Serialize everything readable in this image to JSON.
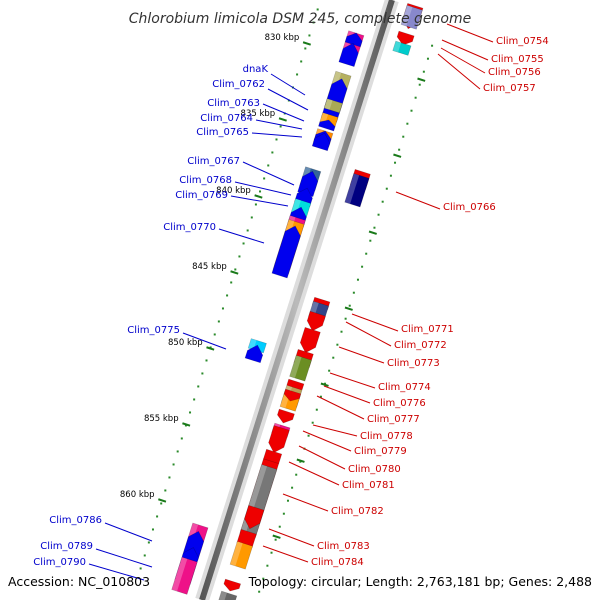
{
  "title": "Chlorobium limicola DSM 245, complete genome",
  "footer": {
    "accession": "Accession: NC_010803",
    "stats": "Topology: circular; Length: 2,763,181 bp; Genes: 2,488"
  },
  "colors": {
    "forward_label": "#0000cc",
    "reverse_label": "#cc0000",
    "forward_gene": "#0000ee",
    "reverse_gene": "#ee0000",
    "backbone": "#777777",
    "tick": "#1a7a1a"
  },
  "ticks": [
    {
      "kbp": 830,
      "label": "830 kbp"
    },
    {
      "kbp": 835,
      "label": "835 kbp"
    },
    {
      "kbp": 840,
      "label": "840 kbp"
    },
    {
      "kbp": 845,
      "label": "845 kbp"
    },
    {
      "kbp": 850,
      "label": "850 kbp"
    },
    {
      "kbp": 855,
      "label": "855 kbp"
    },
    {
      "kbp": 860,
      "label": "860 kbp"
    }
  ],
  "forward_labels": [
    "dnaK",
    "Clim_0762",
    "Clim_0763",
    "Clim_0764",
    "Clim_0765",
    "Clim_0767",
    "Clim_0768",
    "Clim_0769",
    "Clim_0770",
    "Clim_0775",
    "Clim_0786",
    "Clim_0789",
    "Clim_0790"
  ],
  "reverse_labels": [
    "Clim_0754",
    "Clim_0755",
    "Clim_0756",
    "Clim_0757",
    "Clim_0766",
    "Clim_0771",
    "Clim_0772",
    "Clim_0773",
    "Clim_0774",
    "Clim_0776",
    "Clim_0777",
    "Clim_0778",
    "Clim_0779",
    "Clim_0780",
    "Clim_0781",
    "Clim_0782",
    "Clim_0783",
    "Clim_0784"
  ]
}
